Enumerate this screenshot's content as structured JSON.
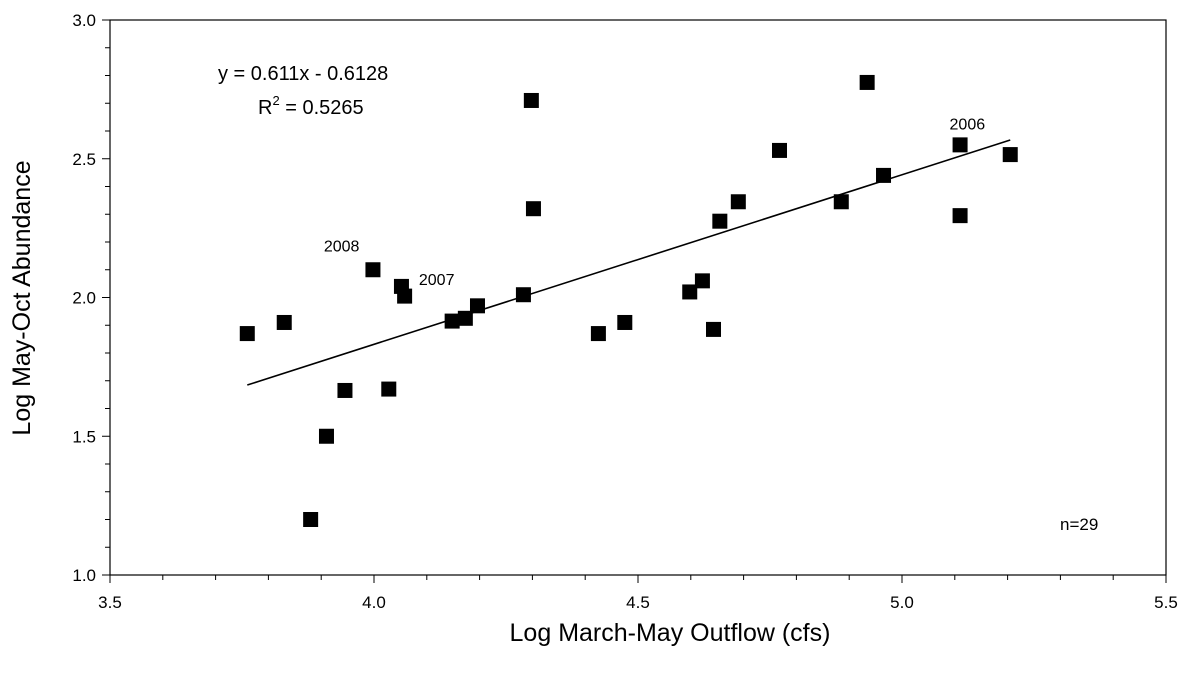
{
  "chart_data": {
    "type": "scatter",
    "xlabel": "Log March-May Outflow (cfs)",
    "ylabel": "Log May-Oct Abundance",
    "xlim": [
      3.5,
      5.5
    ],
    "ylim": [
      1.0,
      3.0
    ],
    "x_ticks": [
      "3.5",
      "4.0",
      "4.5",
      "5.0",
      "5.5"
    ],
    "y_ticks": [
      "1.0",
      "1.5",
      "2.0",
      "2.5",
      "3.0"
    ],
    "x_minor_step": 0.1,
    "y_minor_step": 0.1,
    "grid": false,
    "marker": "filled-square",
    "marker_color": "#000000",
    "points": [
      {
        "x": 3.76,
        "y": 1.87
      },
      {
        "x": 3.83,
        "y": 1.91
      },
      {
        "x": 3.88,
        "y": 1.2
      },
      {
        "x": 3.91,
        "y": 1.5
      },
      {
        "x": 3.945,
        "y": 1.665
      },
      {
        "x": 3.998,
        "y": 2.1
      },
      {
        "x": 4.028,
        "y": 1.67
      },
      {
        "x": 4.052,
        "y": 2.04
      },
      {
        "x": 4.058,
        "y": 2.005
      },
      {
        "x": 4.148,
        "y": 1.915
      },
      {
        "x": 4.173,
        "y": 1.925
      },
      {
        "x": 4.196,
        "y": 1.97
      },
      {
        "x": 4.283,
        "y": 2.01
      },
      {
        "x": 4.298,
        "y": 2.71
      },
      {
        "x": 4.302,
        "y": 2.32
      },
      {
        "x": 4.425,
        "y": 1.87
      },
      {
        "x": 4.475,
        "y": 1.91
      },
      {
        "x": 4.598,
        "y": 2.02
      },
      {
        "x": 4.622,
        "y": 2.06
      },
      {
        "x": 4.643,
        "y": 1.885
      },
      {
        "x": 4.655,
        "y": 2.275
      },
      {
        "x": 4.69,
        "y": 2.345
      },
      {
        "x": 4.768,
        "y": 2.53
      },
      {
        "x": 4.885,
        "y": 2.345
      },
      {
        "x": 4.934,
        "y": 2.775
      },
      {
        "x": 4.965,
        "y": 2.44
      },
      {
        "x": 5.11,
        "y": 2.55
      },
      {
        "x": 5.11,
        "y": 2.295
      },
      {
        "x": 5.205,
        "y": 2.515
      }
    ],
    "trendline": {
      "slope": 0.611,
      "intercept": -0.6128,
      "x_range": [
        3.76,
        5.205
      ]
    },
    "annotations": {
      "equation": "y = 0.611x - 0.6128",
      "r_squared_prefix": "R",
      "r_squared_exp": "2",
      "r_squared_value": " = 0.5265",
      "n_label": "n=29",
      "year_labels": [
        {
          "text": "2008",
          "x": 3.905,
          "y": 2.165
        },
        {
          "text": "2007",
          "x": 4.085,
          "y": 2.045
        },
        {
          "text": "2006",
          "x": 5.09,
          "y": 2.605
        }
      ]
    }
  }
}
